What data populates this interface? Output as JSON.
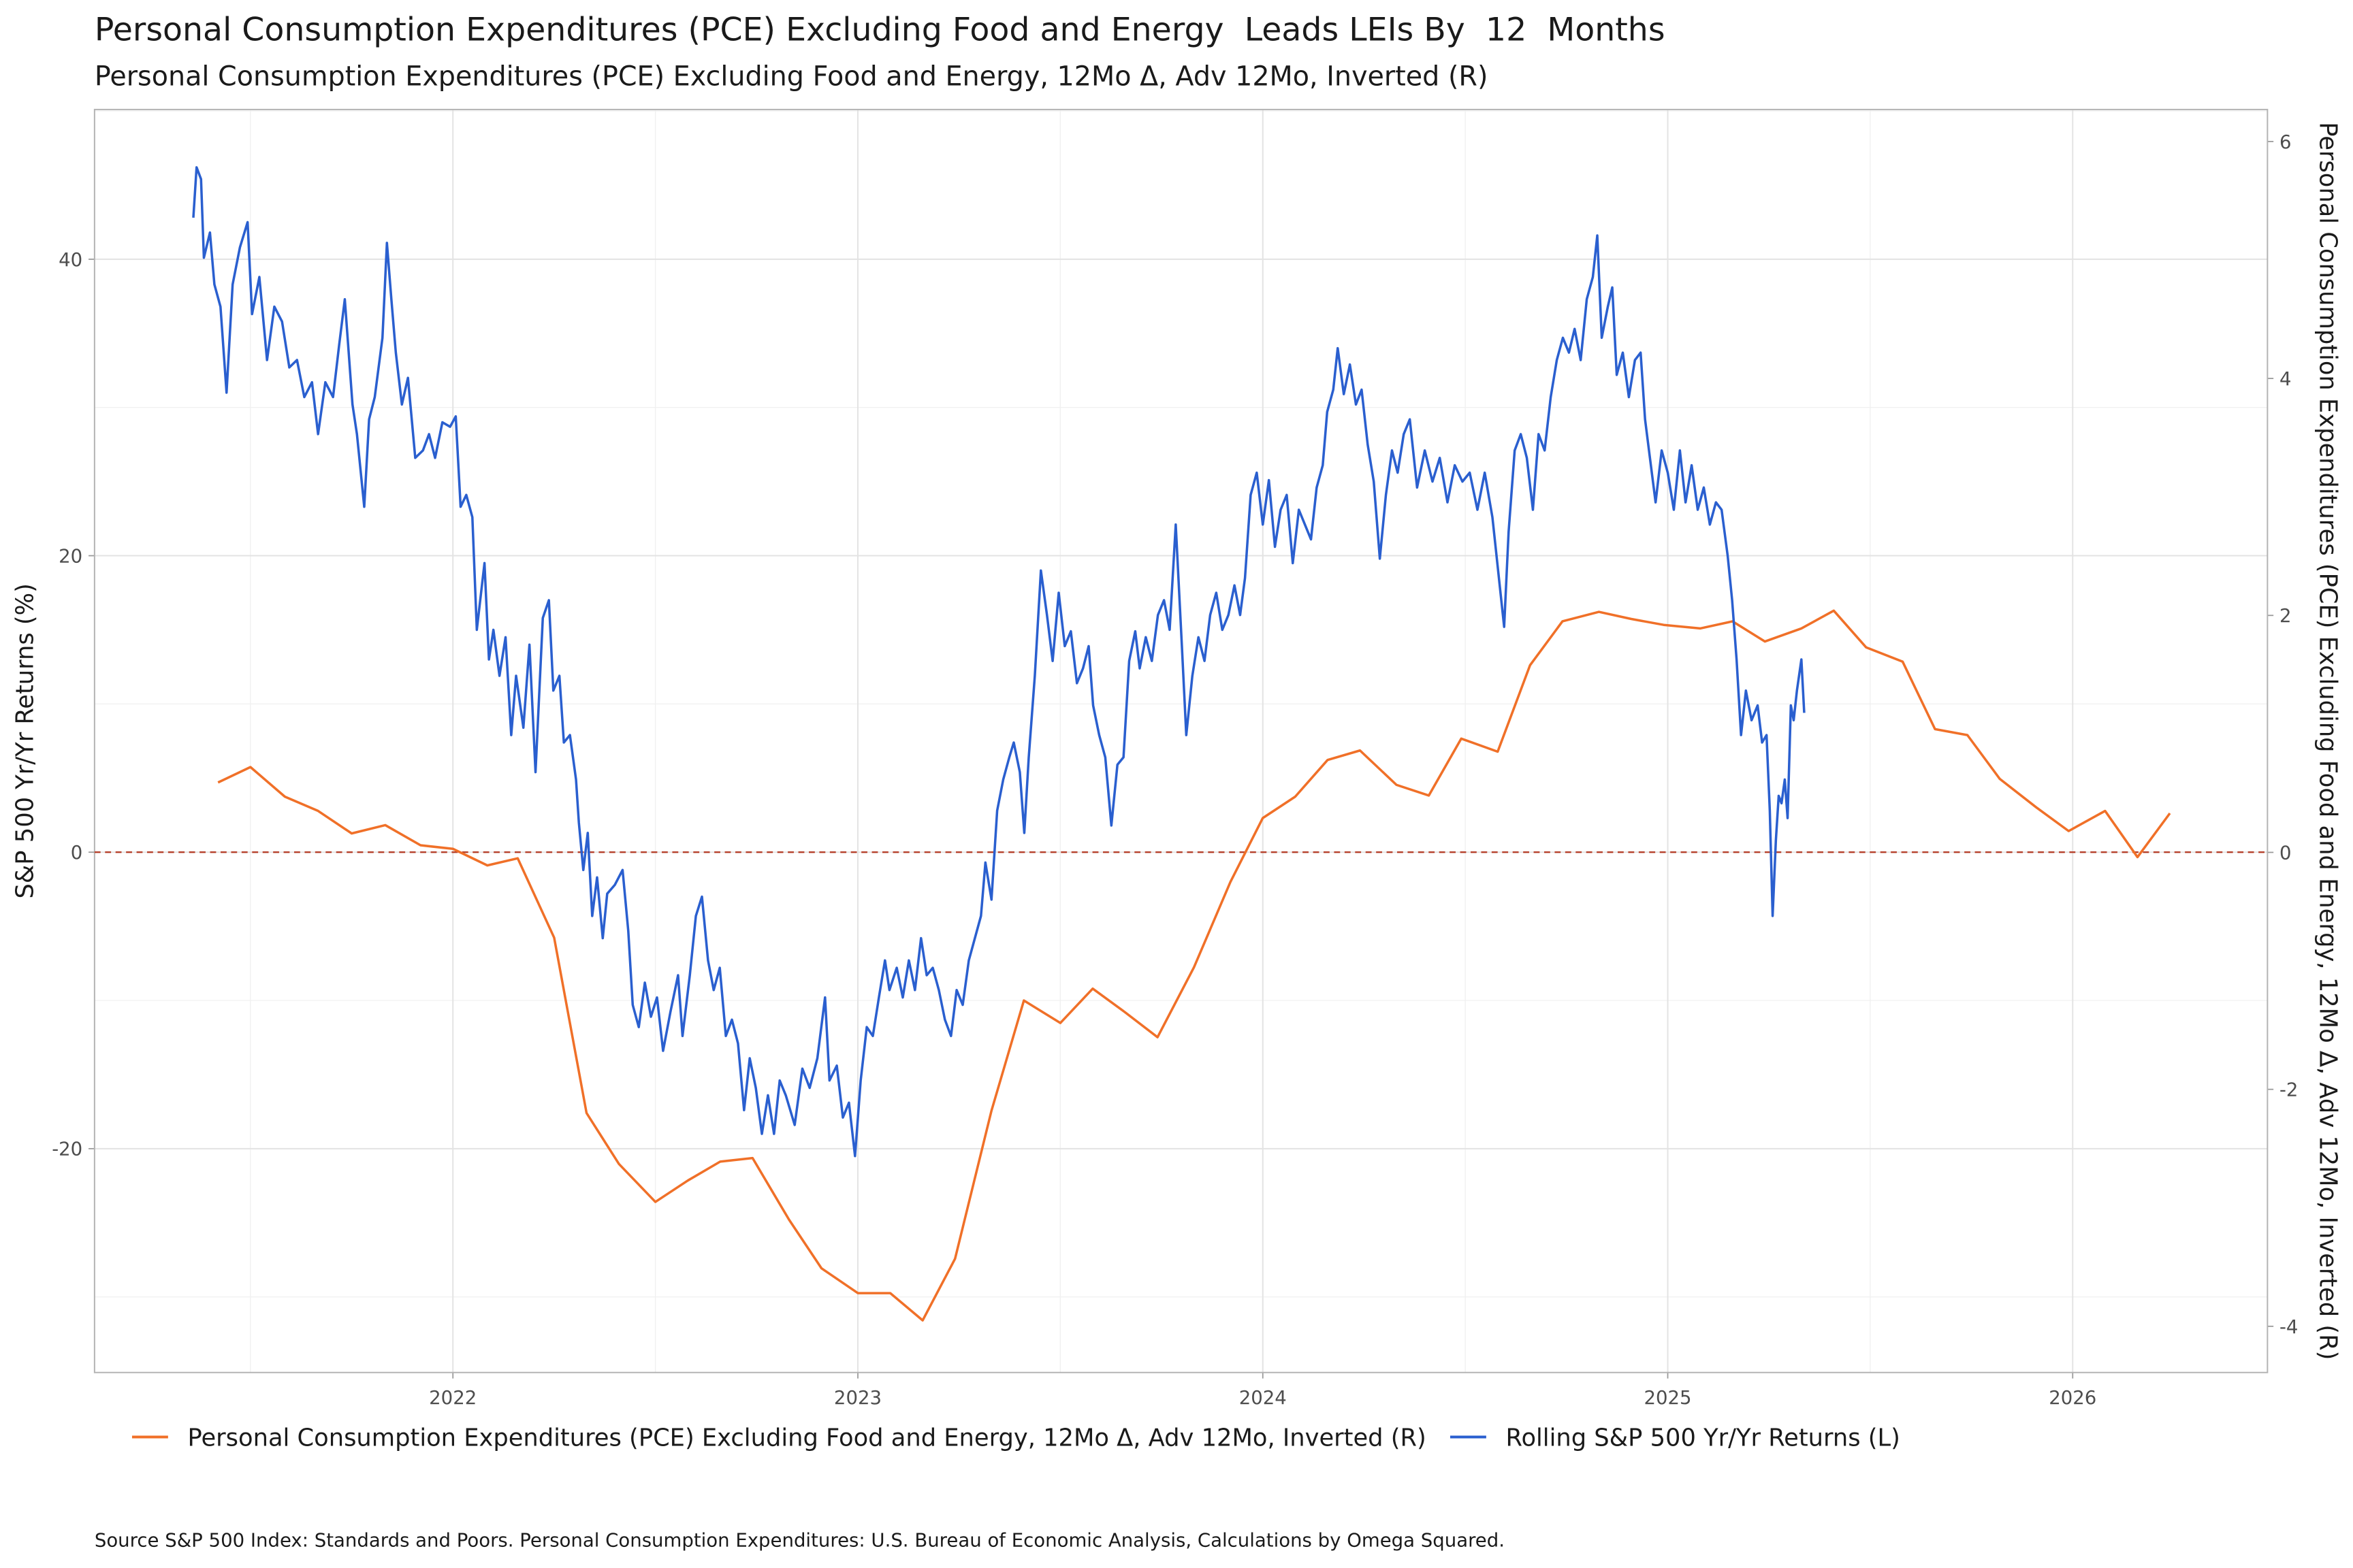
{
  "chart_data": {
    "type": "line",
    "title": "Personal Consumption Expenditures (PCE) Excluding Food and Energy  Leads LEIs By  12  Months",
    "subtitle": "Personal Consumption Expenditures (PCE) Excluding Food and Energy, 12Mo Δ, Adv 12Mo, Inverted (R)",
    "y_label": "S&P 500 Yr/Yr Returns (%)",
    "y2_label": "Personal Consumption Expenditures (PCE) Excluding Food and Energy, 12Mo Δ, Adv 12Mo, Inverted (R)",
    "source": "Source S&P 500 Index: Standards and Poors. Personal Consumption Expenditures: U.S. Bureau of Economic Analysis, Calculations by Omega Squared.",
    "xlim": [
      2021.115,
      2026.481
    ],
    "xticks": [
      2022,
      2023,
      2024,
      2025,
      2026
    ],
    "ylim": [
      -35.1,
      50.1
    ],
    "yticks": [
      -20,
      0,
      20,
      40
    ],
    "y2lim": [
      -4.39,
      6.27
    ],
    "y2ticks": [
      -4,
      -2,
      0,
      2,
      4,
      6
    ],
    "grid": true,
    "legend": "bottom",
    "reference_line": {
      "value": 0,
      "color": "#b5402a"
    },
    "series": [
      {
        "name": "Personal Consumption Expenditures (PCE) Excluding Food and Energy, 12Mo Δ, Adv 12Mo, Inverted (R)",
        "color": "#f07028",
        "axis": "y2",
        "x": [
          2021.42,
          2021.5,
          2021.585,
          2021.667,
          2021.75,
          2021.833,
          2021.92,
          2022.0,
          2022.085,
          2022.16,
          2022.25,
          2022.33,
          2022.41,
          2022.5,
          2022.58,
          2022.66,
          2022.74,
          2022.83,
          2022.91,
          2023.0,
          2023.08,
          2023.16,
          2023.24,
          2023.33,
          2023.41,
          2023.5,
          2023.58,
          2023.66,
          2023.74,
          2023.83,
          2023.92,
          2024.0,
          2024.08,
          2024.16,
          2024.24,
          2024.33,
          2024.41,
          2024.49,
          2024.58,
          2024.66,
          2024.74,
          2024.83,
          2024.91,
          2024.99,
          2025.08,
          2025.16,
          2025.24,
          2025.33,
          2025.41,
          2025.49,
          2025.58,
          2025.66,
          2025.74,
          2025.82,
          2025.91,
          2025.99,
          2026.08,
          2026.16,
          2026.24
        ],
        "values": [
          0.59,
          0.72,
          0.47,
          0.35,
          0.16,
          0.23,
          0.06,
          0.03,
          -0.11,
          -0.05,
          -0.72,
          -2.2,
          -2.63,
          -2.95,
          -2.77,
          -2.61,
          -2.58,
          -3.1,
          -3.51,
          -3.72,
          -3.72,
          -3.95,
          -3.43,
          -2.18,
          -1.25,
          -1.44,
          -1.15,
          -1.35,
          -1.56,
          -0.97,
          -0.25,
          0.29,
          0.47,
          0.78,
          0.86,
          0.57,
          0.48,
          0.96,
          0.85,
          1.58,
          1.95,
          2.03,
          1.97,
          1.92,
          1.89,
          1.95,
          1.78,
          1.89,
          2.04,
          1.73,
          1.61,
          1.04,
          0.99,
          0.62,
          0.38,
          0.18,
          0.35,
          -0.04,
          0.33
        ]
      },
      {
        "name": "Rolling S&P 500 Yr/Yr Returns (L)",
        "color": "#2a5fcf",
        "axis": "y",
        "x": [
          2021.359,
          2021.367,
          2021.378,
          2021.385,
          2021.4,
          2021.411,
          2021.426,
          2021.441,
          2021.456,
          2021.474,
          2021.493,
          2021.504,
          2021.522,
          2021.541,
          2021.559,
          2021.578,
          2021.596,
          2021.615,
          2021.633,
          2021.652,
          2021.667,
          2021.685,
          2021.704,
          2021.719,
          2021.733,
          2021.752,
          2021.763,
          2021.781,
          2021.793,
          2021.807,
          2021.826,
          2021.837,
          2021.848,
          2021.859,
          2021.874,
          2021.889,
          2021.907,
          2021.926,
          2021.941,
          2021.956,
          2021.974,
          2021.993,
          2022.007,
          2022.019,
          2022.033,
          2022.048,
          2022.059,
          2022.078,
          2022.089,
          2022.1,
          2022.115,
          2022.13,
          2022.144,
          2022.156,
          2022.174,
          2022.189,
          2022.204,
          2022.222,
          2022.237,
          2022.248,
          2022.263,
          2022.274,
          2022.289,
          2022.304,
          2022.311,
          2022.322,
          2022.333,
          2022.344,
          2022.356,
          2022.37,
          2022.381,
          2022.4,
          2022.419,
          2022.433,
          2022.444,
          2022.459,
          2022.474,
          2022.489,
          2022.504,
          2022.519,
          2022.537,
          2022.556,
          2022.567,
          2022.585,
          2022.6,
          2022.615,
          2022.63,
          2022.644,
          2022.659,
          2022.674,
          2022.689,
          2022.704,
          2022.719,
          2022.733,
          2022.748,
          2022.763,
          2022.778,
          2022.793,
          2022.807,
          2022.822,
          2022.844,
          2022.863,
          2022.881,
          2022.9,
          2022.919,
          2022.93,
          2022.948,
          2022.963,
          2022.978,
          2022.993,
          2023.007,
          2023.022,
          2023.037,
          2023.052,
          2023.067,
          2023.078,
          2023.096,
          2023.111,
          2023.126,
          2023.141,
          2023.156,
          2023.17,
          2023.185,
          2023.2,
          2023.215,
          2023.23,
          2023.244,
          2023.259,
          2023.274,
          2023.289,
          2023.304,
          2023.315,
          2023.33,
          2023.344,
          2023.359,
          2023.374,
          2023.385,
          2023.4,
          2023.411,
          2023.422,
          2023.437,
          2023.452,
          2023.467,
          2023.481,
          2023.496,
          2023.511,
          2023.526,
          2023.541,
          2023.556,
          2023.57,
          2023.581,
          2023.596,
          2023.611,
          2023.626,
          2023.641,
          2023.656,
          2023.67,
          2023.685,
          2023.696,
          2023.711,
          2023.726,
          2023.741,
          2023.756,
          2023.77,
          2023.785,
          2023.8,
          2023.811,
          2023.826,
          2023.841,
          2023.856,
          2023.87,
          2023.885,
          2023.9,
          2023.915,
          2023.93,
          2023.944,
          2023.956,
          2023.97,
          2023.985,
          2024.0,
          2024.015,
          2024.03,
          2024.044,
          2024.059,
          2024.074,
          2024.089,
          2024.104,
          2024.119,
          2024.133,
          2024.148,
          2024.159,
          2024.174,
          2024.185,
          2024.2,
          2024.215,
          2024.23,
          2024.244,
          2024.259,
          2024.274,
          2024.289,
          2024.304,
          2024.319,
          2024.333,
          2024.348,
          2024.363,
          2024.381,
          2024.4,
          2024.419,
          2024.437,
          2024.456,
          2024.474,
          2024.493,
          2024.511,
          2024.53,
          2024.548,
          2024.567,
          2024.585,
          2024.596,
          2024.607,
          2024.622,
          2024.637,
          2024.652,
          2024.667,
          2024.681,
          2024.696,
          2024.711,
          2024.726,
          2024.741,
          2024.756,
          2024.77,
          2024.785,
          2024.8,
          2024.815,
          2024.826,
          2024.837,
          2024.852,
          2024.863,
          2024.874,
          2024.889,
          2024.904,
          2024.919,
          2024.933,
          2024.944,
          2024.956,
          2024.97,
          2024.985,
          2025.0,
          2025.015,
          2025.03,
          2025.044,
          2025.059,
          2025.074,
          2025.089,
          2025.104,
          2025.119,
          2025.133,
          2025.148,
          2025.159,
          2025.17,
          2025.181,
          2025.193,
          2025.207,
          2025.222,
          2025.233,
          2025.244,
          2025.252,
          2025.259,
          2025.267,
          2025.274,
          2025.281,
          2025.289,
          2025.296,
          2025.304,
          2025.311,
          2025.319,
          2025.33,
          2025.337
        ],
        "values": [
          42.8,
          46.2,
          45.4,
          40.1,
          41.8,
          38.3,
          36.8,
          31.0,
          38.3,
          40.8,
          42.5,
          36.3,
          38.8,
          33.2,
          36.8,
          35.8,
          32.7,
          33.2,
          30.7,
          31.7,
          28.2,
          31.7,
          30.7,
          34.2,
          37.3,
          30.2,
          28.2,
          23.3,
          29.2,
          30.7,
          34.7,
          41.1,
          37.3,
          33.7,
          30.2,
          32.0,
          26.6,
          27.1,
          28.2,
          26.6,
          29.0,
          28.7,
          29.4,
          23.3,
          24.1,
          22.6,
          15.0,
          19.5,
          13.0,
          15.0,
          11.9,
          14.5,
          7.9,
          11.9,
          8.4,
          14.0,
          5.4,
          15.8,
          17.0,
          10.9,
          11.9,
          7.4,
          7.9,
          4.9,
          2.0,
          -1.2,
          1.3,
          -4.3,
          -1.7,
          -5.8,
          -2.8,
          -2.2,
          -1.2,
          -5.3,
          -10.3,
          -11.8,
          -8.8,
          -11.1,
          -9.8,
          -13.4,
          -10.8,
          -8.3,
          -12.4,
          -8.3,
          -4.3,
          -3.0,
          -7.3,
          -9.3,
          -7.8,
          -12.4,
          -11.3,
          -12.9,
          -17.4,
          -13.9,
          -15.9,
          -19.0,
          -16.4,
          -19.0,
          -15.4,
          -16.4,
          -18.4,
          -14.6,
          -15.9,
          -13.9,
          -9.8,
          -15.4,
          -14.4,
          -17.9,
          -16.9,
          -20.5,
          -15.4,
          -11.8,
          -12.4,
          -9.8,
          -7.3,
          -9.3,
          -7.8,
          -9.8,
          -7.3,
          -9.3,
          -5.8,
          -8.3,
          -7.8,
          -9.3,
          -11.3,
          -12.4,
          -9.3,
          -10.3,
          -7.3,
          -5.8,
          -4.3,
          -0.7,
          -3.2,
          2.8,
          4.9,
          6.4,
          7.4,
          5.4,
          1.3,
          6.4,
          11.9,
          19.0,
          16.0,
          12.9,
          17.5,
          13.9,
          14.9,
          11.4,
          12.4,
          13.9,
          9.9,
          7.9,
          6.4,
          1.8,
          5.9,
          6.4,
          12.9,
          14.9,
          12.4,
          14.5,
          12.9,
          16.0,
          17.0,
          15.0,
          22.1,
          14.0,
          7.9,
          11.9,
          14.5,
          12.9,
          16.0,
          17.5,
          15.0,
          16.0,
          18.0,
          16.0,
          18.5,
          24.1,
          25.6,
          22.1,
          25.1,
          20.6,
          23.1,
          24.1,
          19.5,
          23.1,
          22.1,
          21.1,
          24.6,
          26.1,
          29.7,
          31.2,
          34.0,
          30.9,
          32.9,
          30.2,
          31.2,
          27.5,
          25.0,
          19.8,
          24.1,
          27.1,
          25.6,
          28.2,
          29.2,
          24.6,
          27.1,
          25.0,
          26.6,
          23.6,
          26.1,
          25.0,
          25.6,
          23.1,
          25.6,
          22.6,
          18.0,
          15.2,
          21.6,
          27.1,
          28.2,
          26.6,
          23.1,
          28.2,
          27.1,
          30.7,
          33.2,
          34.7,
          33.7,
          35.3,
          33.2,
          37.3,
          38.8,
          41.6,
          34.7,
          36.8,
          38.1,
          32.2,
          33.7,
          30.7,
          33.2,
          33.7,
          29.2,
          26.6,
          23.6,
          27.1,
          25.6,
          23.1,
          27.1,
          23.6,
          26.1,
          23.1,
          24.6,
          22.1,
          23.6,
          23.1,
          20.0,
          17.0,
          13.0,
          7.9,
          10.9,
          8.9,
          9.9,
          7.4,
          7.9,
          2.8,
          -4.3,
          0.8,
          3.8,
          3.3,
          4.9,
          2.3,
          9.9,
          8.9,
          10.9,
          13.0,
          9.4
        ]
      }
    ]
  }
}
